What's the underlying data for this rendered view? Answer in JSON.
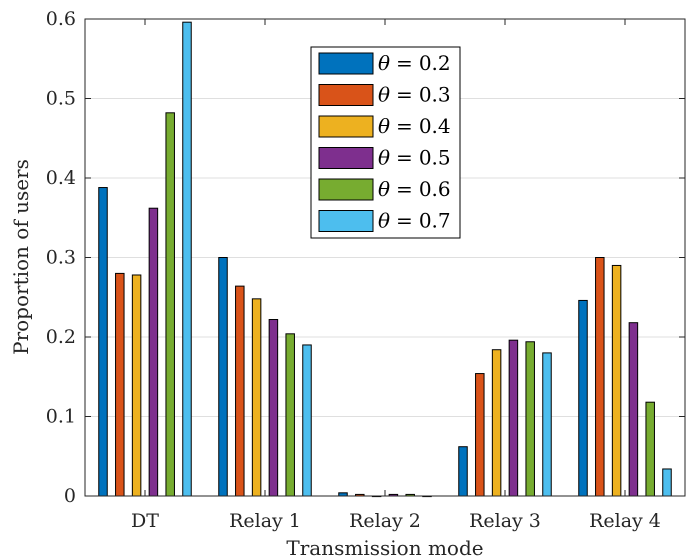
{
  "chart_data": {
    "type": "bar",
    "title": "",
    "xlabel": "Transmission mode",
    "ylabel": "Proportion of users",
    "categories": [
      "DT",
      "Relay 1",
      "Relay 2",
      "Relay 3",
      "Relay 4"
    ],
    "ylim": [
      0,
      0.6
    ],
    "yticks": [
      "0",
      "0.1",
      "0.2",
      "0.3",
      "0.4",
      "0.5",
      "0.6"
    ],
    "grid": true,
    "legend_position": "top-center",
    "legend_symbol": "θ",
    "legend_operator": "=",
    "series": [
      {
        "name": "0.2",
        "color": "#0072BD",
        "values": [
          0.388,
          0.3,
          0.004,
          0.062,
          0.246
        ]
      },
      {
        "name": "0.3",
        "color": "#D95319",
        "values": [
          0.28,
          0.264,
          0.002,
          0.154,
          0.3
        ]
      },
      {
        "name": "0.4",
        "color": "#EDB120",
        "values": [
          0.278,
          0.248,
          0.0,
          0.184,
          0.29
        ]
      },
      {
        "name": "0.5",
        "color": "#7E2F8E",
        "values": [
          0.362,
          0.222,
          0.002,
          0.196,
          0.218
        ]
      },
      {
        "name": "0.6",
        "color": "#77AC30",
        "values": [
          0.482,
          0.204,
          0.002,
          0.194,
          0.118
        ]
      },
      {
        "name": "0.7",
        "color": "#4DBEEE",
        "values": [
          0.596,
          0.19,
          0.0,
          0.18,
          0.034
        ]
      }
    ]
  }
}
